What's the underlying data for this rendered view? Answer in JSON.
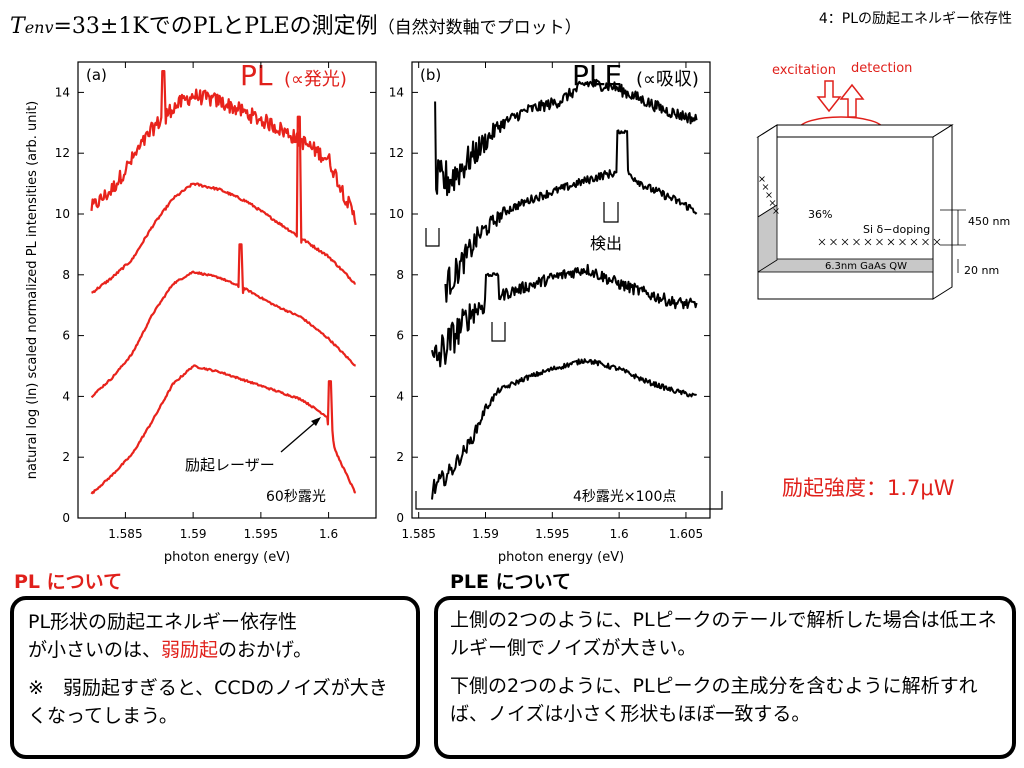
{
  "title": {
    "t_symbol": "T",
    "t_sub": "env",
    "main": "=33±1KでのPLとPLEの測定例",
    "note": "（自然対数軸でプロット）"
  },
  "corner_label": "4：PLの励起エネルギー依存性",
  "panel_a": {
    "label": "(a)",
    "big_label": "PL",
    "big_label_paren": "(∝発光)",
    "ylabel": "natural log (ln) scaled normalized PL intensities (arb. unit)",
    "xlabel": "photon energy (eV)",
    "annotation_laser": "励起レーザー",
    "exposure": "60秒露光"
  },
  "panel_b": {
    "label": "(b)",
    "big_label": "PLE",
    "big_label_paren": "(∝吸収)",
    "xlabel": "photon energy (eV)",
    "annotation_detect": "検出",
    "exposure": "4秒露光×100点"
  },
  "diagram": {
    "excitation": "excitation",
    "detection": "detection",
    "percent": "36%",
    "doping": "Si δ−doping",
    "qw": "6.3nm GaAs QW",
    "dim1": "450 nm",
    "dim2": "20 nm"
  },
  "excitation_power": "励起強度：1.7μW",
  "pl_section": {
    "heading": "PL について",
    "line1_a": "PL形状の励起エネルギー依存性",
    "line1_b": "が小さいのは、",
    "line1_red": "弱励起",
    "line1_c": "のおかげ。",
    "line2": "※　弱励起すぎると、CCDのノイズが大きくなってしまう。"
  },
  "ple_section": {
    "heading": "PLE について",
    "para1": "上側の2つのように、PLピークのテールで解析した場合は低エネルギー側でノイズが大きい。",
    "para2": "下側の2つのように、PLピークの主成分を含むように解析すれば、ノイズは小さく形状もほぼ一致する。"
  },
  "chart_data": [
    {
      "type": "line",
      "panel": "(a)",
      "xlabel": "photon energy (eV)",
      "ylabel": "natural log (ln) scaled normalized PL intensities (arb. unit)",
      "xlim": [
        1.5815,
        1.6035
      ],
      "ylim": [
        0,
        15
      ],
      "xticks": [
        1.585,
        1.59,
        1.595,
        1.6
      ],
      "yticks": [
        0,
        2,
        4,
        6,
        8,
        10,
        12,
        14
      ],
      "color": "#e8231c",
      "series": [
        {
          "x": [
            1.5825,
            1.584,
            1.5855,
            1.587,
            1.5885,
            1.59,
            1.592,
            1.594,
            1.596,
            1.598,
            1.6,
            1.602
          ],
          "y": [
            10.2,
            10.8,
            11.8,
            12.8,
            13.5,
            13.9,
            13.7,
            13.3,
            12.9,
            12.4,
            11.8,
            9.8
          ],
          "noise": 0.25,
          "spike": {
            "x": 1.5878,
            "y": 14.7
          }
        },
        {
          "x": [
            1.5825,
            1.584,
            1.5855,
            1.587,
            1.5885,
            1.59,
            1.592,
            1.594,
            1.596,
            1.598,
            1.6,
            1.602
          ],
          "y": [
            7.4,
            7.9,
            8.5,
            9.6,
            10.5,
            11.0,
            10.8,
            10.4,
            9.8,
            9.2,
            8.6,
            7.7
          ],
          "noise": 0.04,
          "spike": {
            "x": 1.5978,
            "y": 13.2
          }
        },
        {
          "x": [
            1.5825,
            1.584,
            1.5855,
            1.587,
            1.5885,
            1.59,
            1.592,
            1.594,
            1.596,
            1.598,
            1.6,
            1.602
          ],
          "y": [
            4.0,
            4.6,
            5.4,
            6.7,
            7.7,
            8.1,
            7.9,
            7.5,
            7.0,
            6.6,
            5.9,
            5.0
          ],
          "noise": 0.03,
          "spike": {
            "x": 1.5935,
            "y": 9.0
          }
        },
        {
          "x": [
            1.5825,
            1.584,
            1.5855,
            1.587,
            1.5885,
            1.59,
            1.592,
            1.594,
            1.596,
            1.598,
            1.6,
            1.6005,
            1.602
          ],
          "y": [
            0.8,
            1.4,
            2.1,
            3.2,
            4.4,
            5.0,
            4.8,
            4.5,
            4.2,
            3.9,
            3.3,
            2.2,
            0.8
          ],
          "noise": 0.03,
          "spike": {
            "x": 1.6001,
            "y": 4.5
          }
        }
      ]
    },
    {
      "type": "line",
      "panel": "(b)",
      "xlabel": "photon energy (eV)",
      "xlim": [
        1.5845,
        1.6068
      ],
      "ylim": [
        0,
        15
      ],
      "xticks": [
        1.585,
        1.59,
        1.595,
        1.6,
        1.605
      ],
      "yticks": [
        0,
        2,
        4,
        6,
        8,
        10,
        12,
        14
      ],
      "color": "#000000",
      "series": [
        {
          "x": [
            1.5863,
            1.5875,
            1.589,
            1.591,
            1.593,
            1.5955,
            1.5975,
            1.5995,
            1.6015,
            1.6035,
            1.6058
          ],
          "y": [
            11.0,
            11.2,
            11.9,
            12.9,
            13.4,
            13.7,
            14.3,
            14.2,
            13.8,
            13.4,
            13.1
          ],
          "noise": 0.35,
          "startSpike": 13.7
        },
        {
          "x": [
            1.587,
            1.588,
            1.5895,
            1.5915,
            1.5935,
            1.5955,
            1.5975,
            1.599,
            1.6005,
            1.602,
            1.604,
            1.6058
          ],
          "y": [
            7.6,
            8.2,
            9.3,
            10.1,
            10.5,
            10.8,
            11.1,
            11.3,
            11.4,
            10.9,
            10.5,
            10.1
          ],
          "noise": 0.25,
          "plateau": {
            "from": 1.5998,
            "to": 1.6006,
            "y": 12.7
          }
        },
        {
          "x": [
            1.586,
            1.5875,
            1.589,
            1.591,
            1.593,
            1.595,
            1.5975,
            1.6,
            1.602,
            1.604,
            1.6058
          ],
          "y": [
            5.0,
            5.9,
            6.8,
            7.3,
            7.6,
            7.9,
            8.2,
            7.7,
            7.4,
            7.1,
            7.0
          ],
          "noise": 0.35,
          "plateau": {
            "from": 1.59,
            "to": 1.591,
            "y": 8.0
          }
        },
        {
          "x": [
            1.586,
            1.5875,
            1.589,
            1.59,
            1.591,
            1.593,
            1.595,
            1.5975,
            1.6,
            1.602,
            1.604,
            1.6058
          ],
          "y": [
            0.9,
            1.6,
            2.6,
            3.6,
            4.2,
            4.6,
            4.9,
            5.2,
            4.9,
            4.5,
            4.2,
            4.0
          ],
          "noise": 0.15
        }
      ]
    }
  ]
}
